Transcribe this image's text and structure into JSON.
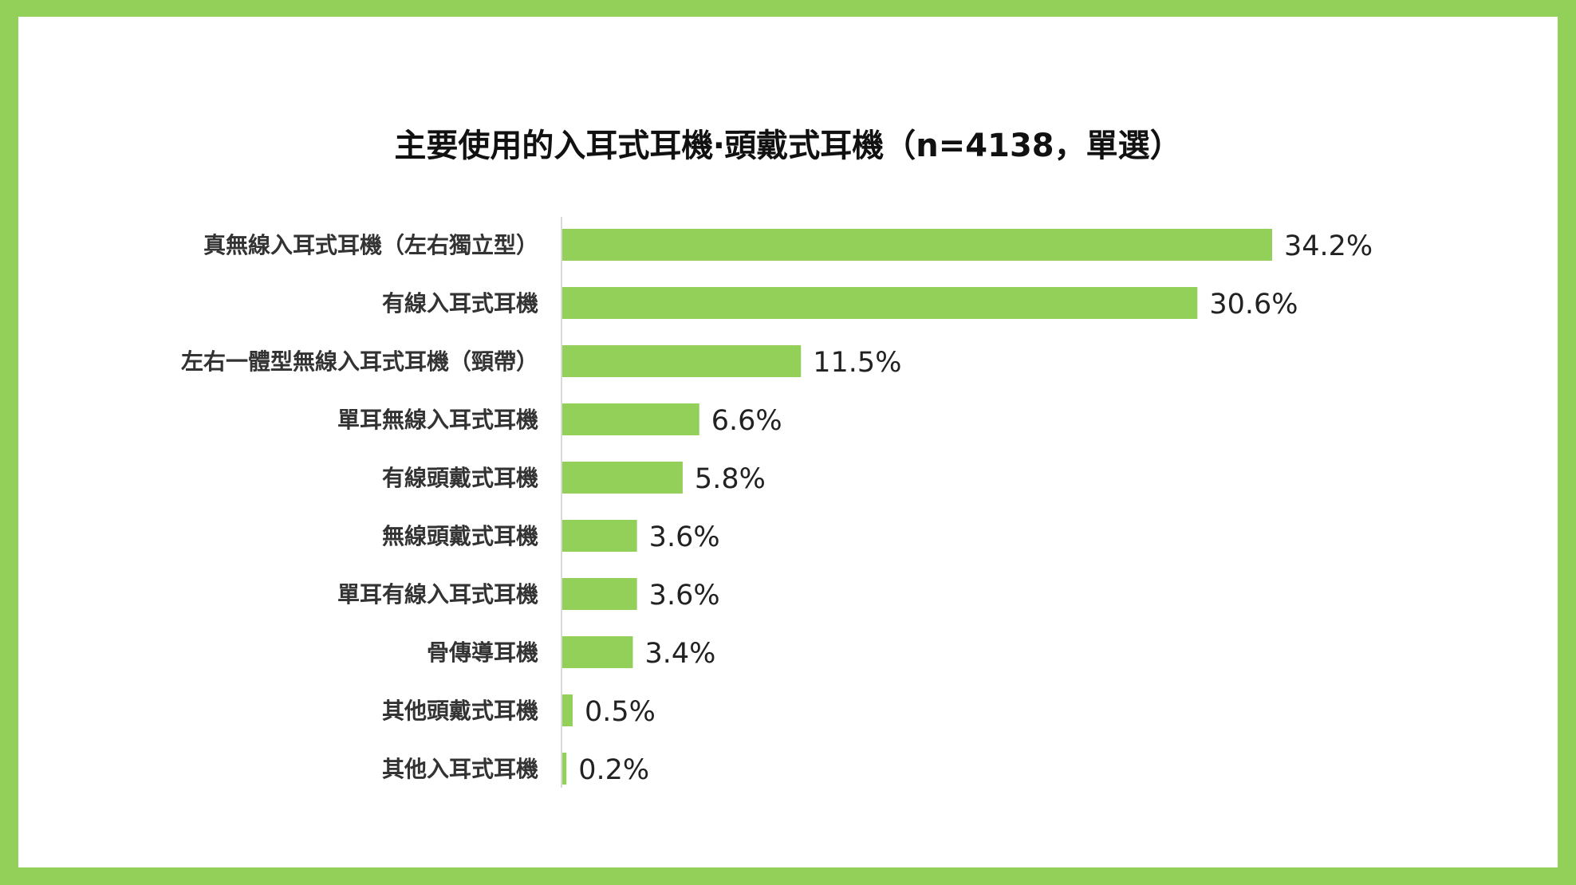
{
  "colors": {
    "border": "#92d05a",
    "bar": "#92d05a",
    "axis": "#d9d9d9",
    "text": "#333333"
  },
  "chart_data": {
    "type": "bar",
    "orientation": "horizontal",
    "title": "主要使用的入耳式耳機‧頭戴式耳機（n=4138，單選）",
    "xlabel": "",
    "ylabel": "",
    "xlim": [
      0,
      40
    ],
    "grid": false,
    "legend": "none",
    "categories": [
      "真無線入耳式耳機（左右獨立型）",
      "有線入耳式耳機",
      "左右一體型無線入耳式耳機（頸帶）",
      "單耳無線入耳式耳機",
      "有線頭戴式耳機",
      "無線頭戴式耳機",
      "單耳有線入耳式耳機",
      "骨傳導耳機",
      "其他頭戴式耳機",
      "其他入耳式耳機"
    ],
    "values": [
      34.2,
      30.6,
      11.5,
      6.6,
      5.8,
      3.6,
      3.6,
      3.4,
      0.5,
      0.2
    ],
    "value_labels": [
      "34.2%",
      "30.6%",
      "11.5%",
      "6.6%",
      "5.8%",
      "3.6%",
      "3.6%",
      "3.4%",
      "0.5%",
      "0.2%"
    ]
  }
}
